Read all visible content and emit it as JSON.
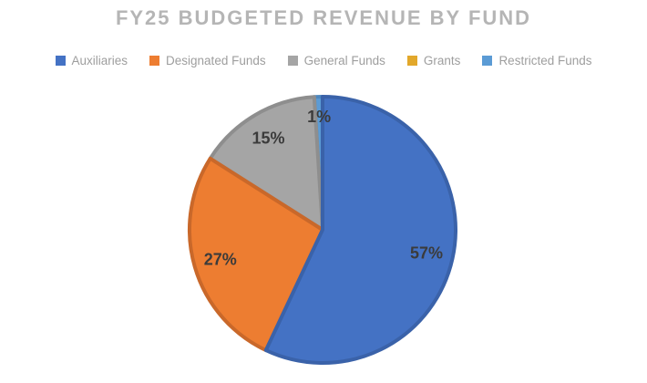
{
  "chart_data": {
    "type": "pie",
    "title": "FY25 BUDGETED REVENUE BY FUND",
    "legend_position": "top",
    "start_angle_deg": 0,
    "direction": "clockwise",
    "data_labels": "percent",
    "slices": [
      {
        "name": "Auxiliaries",
        "value": 57,
        "label": "57%",
        "color": "#4472C4",
        "border_color": "#3A62A9"
      },
      {
        "name": "Designated Funds",
        "value": 27,
        "label": "27%",
        "color": "#ED7D31",
        "border_color": "#C9682A"
      },
      {
        "name": "General Funds",
        "value": 15,
        "label": "15%",
        "color": "#A5A5A5",
        "border_color": "#8E8E8E"
      },
      {
        "name": "Grants",
        "value": 0,
        "label": "",
        "color": "#E2A82B",
        "border_color": "#C08F1F"
      },
      {
        "name": "Restricted Funds",
        "value": 1,
        "label": "1%",
        "color": "#5B9BD5",
        "border_color": "#4D87BE",
        "label_radius": 0.85
      }
    ]
  },
  "colors": {
    "background": "#FFFFFF",
    "title_text": "#B5B5B5",
    "legend_text": "#9E9E9E",
    "data_label_text": "#3B3B3B"
  }
}
